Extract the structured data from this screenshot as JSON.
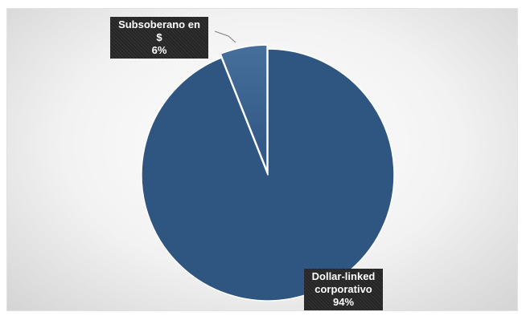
{
  "chart_data": {
    "type": "pie",
    "title": "",
    "series": [
      {
        "values": [
          6,
          94
        ],
        "categories": [
          "Subsoberano en $",
          "Dollar-linked corporativo"
        ]
      }
    ],
    "colors": {
      "slice": "#2f5581",
      "slice_edge": "#ffffff",
      "label_bg": "#262626",
      "leader": "#808080"
    },
    "labels": [
      {
        "category_lines": [
          "Subsoberano en",
          "$"
        ],
        "percent": "6%"
      },
      {
        "category_lines": [
          "Dollar-linked",
          "corporativo"
        ],
        "percent": "94%"
      }
    ],
    "legend": "none",
    "grid": false
  }
}
